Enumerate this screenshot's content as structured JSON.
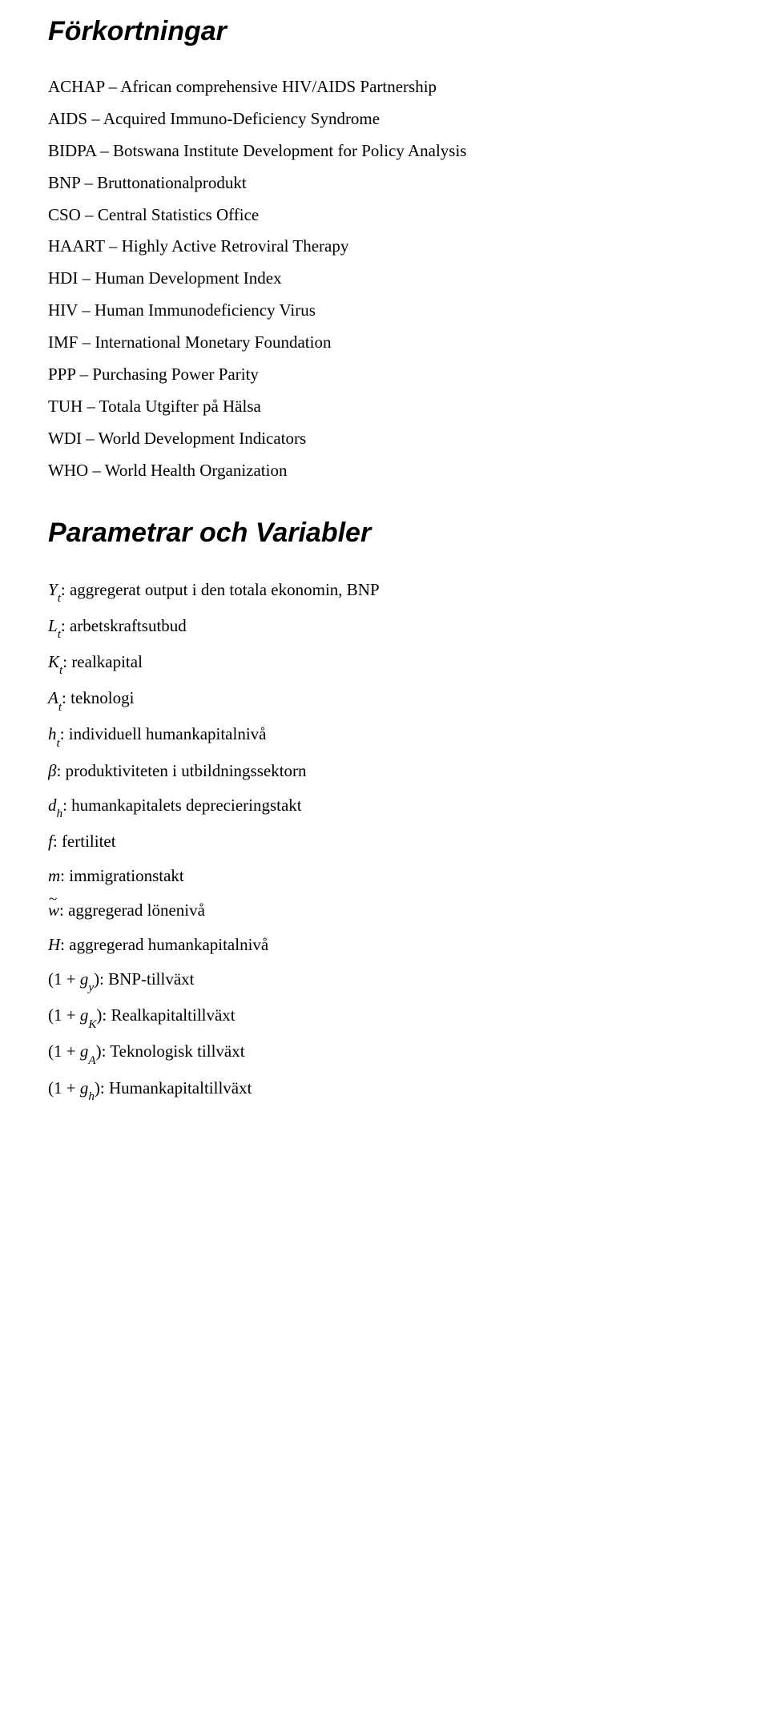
{
  "section1": {
    "title": "Förkortningar",
    "items": [
      {
        "abbr": "ACHAP",
        "desc": "African comprehensive HIV/AIDS Partnership"
      },
      {
        "abbr": "AIDS",
        "desc": "Acquired Immuno-Deficiency Syndrome"
      },
      {
        "abbr": "BIDPA",
        "desc": "Botswana Institute Development for Policy Analysis"
      },
      {
        "abbr": "BNP",
        "desc": "Bruttonationalprodukt"
      },
      {
        "abbr": "CSO",
        "desc": "Central Statistics Office"
      },
      {
        "abbr": "HAART",
        "desc": "Highly Active Retroviral Therapy"
      },
      {
        "abbr": "HDI",
        "desc": "Human Development Index"
      },
      {
        "abbr": "HIV",
        "desc": "Human Immunodeficiency Virus"
      },
      {
        "abbr": "IMF",
        "desc": "International Monetary Foundation"
      },
      {
        "abbr": "PPP",
        "desc": "Purchasing Power Parity"
      },
      {
        "abbr": "TUH",
        "desc": "Totala Utgifter på Hälsa"
      },
      {
        "abbr": "WDI",
        "desc": "World Development Indicators"
      },
      {
        "abbr": "WHO",
        "desc": "World Health Organization"
      }
    ]
  },
  "section2": {
    "title": "Parametrar och Variabler",
    "items": [
      {
        "symbol_html": "<span class='sym'>Y</span><sub>t</sub>",
        "desc": "aggregerat output i den totala ekonomin, BNP"
      },
      {
        "symbol_html": "<span class='sym'>L</span><sub>t</sub>",
        "desc": "arbetskraftsutbud"
      },
      {
        "symbol_html": "<span class='sym'>K</span><sub>t</sub>",
        "desc": "realkapital"
      },
      {
        "symbol_html": "<span class='sym'>A</span><sub>t</sub>",
        "desc": "teknologi"
      },
      {
        "symbol_html": "<span class='sym'>h</span><sub>t</sub>",
        "desc": "individuell humankapitalnivå"
      },
      {
        "symbol_html": "<span class='beta'>β</span>",
        "desc": "produktiviteten i utbildningssektorn"
      },
      {
        "symbol_html": "<span class='sym'>d</span><sub>h</sub>",
        "desc": "humankapitalets deprecieringstakt"
      },
      {
        "symbol_html": "<span class='sym'>f</span>",
        "desc": "fertilitet"
      },
      {
        "symbol_html": "<span class='sym'>m</span>",
        "desc": "immigrationstakt"
      },
      {
        "symbol_html": "<span class='tilde sym'>w</span>",
        "desc": "aggregerad lönenivå"
      },
      {
        "symbol_html": "<span class='sym'>H</span>",
        "desc": "aggregerad humankapitalnivå"
      },
      {
        "symbol_html": "<span class='paren'>(</span>1 + <span class='sym'>g</span><sub>y</sub><span class='paren'>)</span>",
        "desc": "BNP-tillväxt"
      },
      {
        "symbol_html": "<span class='paren'>(</span>1 + <span class='sym'>g</span><sub>K</sub><span class='paren'>)</span>",
        "desc": "Realkapitaltillväxt"
      },
      {
        "symbol_html": "<span class='paren'>(</span>1 + <span class='sym'>g</span><sub>A</sub><span class='paren'>)</span>",
        "desc": "Teknologisk tillväxt"
      },
      {
        "symbol_html": "<span class='paren'>(</span>1 + <span class='sym'>g</span><sub>h</sub><span class='paren'>)</span>",
        "desc": "Humankapitaltillväxt"
      }
    ]
  },
  "separator": " – ",
  "colon": ": "
}
